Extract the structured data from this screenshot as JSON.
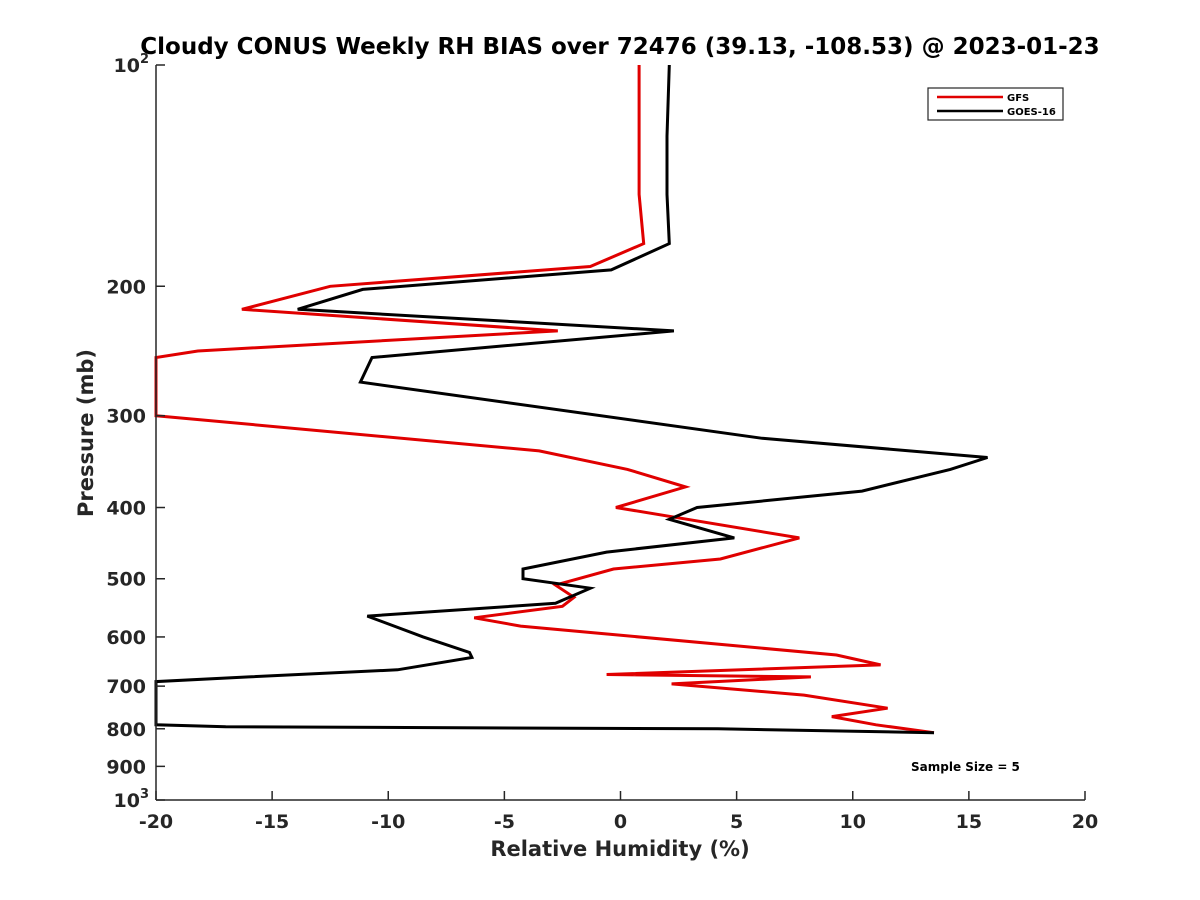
{
  "chart_data": {
    "type": "line",
    "title": "Cloudy CONUS Weekly RH BIAS over 72476 (39.13, -108.53) @ 2023-01-23",
    "xlabel": "Relative Humidity (%)",
    "ylabel": "Pressure (mb)",
    "xlim": [
      -20,
      20
    ],
    "ylim": [
      100,
      1000
    ],
    "y_scale": "log",
    "y_reversed": true,
    "x_ticks": [
      "-20",
      "-15",
      "-10",
      "-5",
      "0",
      "5",
      "10",
      "15",
      "20"
    ],
    "y_ticks": [
      {
        "value": 100,
        "base": "10",
        "exp": "2"
      },
      {
        "value": 200,
        "label": "200"
      },
      {
        "value": 300,
        "label": "300"
      },
      {
        "value": 400,
        "label": "400"
      },
      {
        "value": 500,
        "label": "500"
      },
      {
        "value": 600,
        "label": "600"
      },
      {
        "value": 700,
        "label": "700"
      },
      {
        "value": 800,
        "label": "800"
      },
      {
        "value": 900,
        "label": "900"
      },
      {
        "value": 1000,
        "base": "10",
        "exp": "3"
      }
    ],
    "grid": false,
    "legend_position": "top-right",
    "annotation": "Sample Size = 5",
    "series": [
      {
        "name": "GFS",
        "color": "#e00000",
        "points": [
          [
            0.8,
            100
          ],
          [
            0.8,
            125
          ],
          [
            0.8,
            150
          ],
          [
            1.0,
            175
          ],
          [
            -1.3,
            188
          ],
          [
            -12.5,
            200
          ],
          [
            -16.3,
            215
          ],
          [
            -2.7,
            230
          ],
          [
            -18.2,
            245
          ],
          [
            -20.0,
            250
          ],
          [
            -20.0,
            300
          ],
          [
            -3.5,
            335
          ],
          [
            0.3,
            355
          ],
          [
            2.8,
            375
          ],
          [
            -0.2,
            400
          ],
          [
            7.7,
            440
          ],
          [
            4.3,
            470
          ],
          [
            -0.3,
            485
          ],
          [
            -2.8,
            510
          ],
          [
            -2.0,
            530
          ],
          [
            -2.5,
            545
          ],
          [
            -6.3,
            565
          ],
          [
            -4.3,
            580
          ],
          [
            9.3,
            635
          ],
          [
            11.2,
            655
          ],
          [
            -0.6,
            675
          ],
          [
            8.2,
            680
          ],
          [
            2.2,
            695
          ],
          [
            7.9,
            720
          ],
          [
            11.5,
            750
          ],
          [
            9.1,
            770
          ],
          [
            11.0,
            790
          ],
          [
            13.5,
            810
          ]
        ]
      },
      {
        "name": "GOES-16",
        "color": "#000000",
        "points": [
          [
            2.1,
            100
          ],
          [
            2.0,
            125
          ],
          [
            2.0,
            150
          ],
          [
            2.1,
            175
          ],
          [
            -0.4,
            190
          ],
          [
            -11.1,
            202
          ],
          [
            -13.9,
            215
          ],
          [
            2.3,
            230
          ],
          [
            -10.7,
            250
          ],
          [
            -11.2,
            270
          ],
          [
            6.1,
            322
          ],
          [
            15.8,
            342
          ],
          [
            14.2,
            355
          ],
          [
            10.4,
            380
          ],
          [
            3.3,
            400
          ],
          [
            2.1,
            415
          ],
          [
            4.9,
            440
          ],
          [
            -0.6,
            460
          ],
          [
            -4.2,
            485
          ],
          [
            -4.2,
            500
          ],
          [
            -1.3,
            515
          ],
          [
            -2.8,
            540
          ],
          [
            -10.9,
            562
          ],
          [
            -8.5,
            600
          ],
          [
            -6.5,
            630
          ],
          [
            -6.4,
            640
          ],
          [
            -9.6,
            665
          ],
          [
            -16.0,
            680
          ],
          [
            -20.0,
            690
          ],
          [
            -20.0,
            790
          ],
          [
            -17.0,
            795
          ],
          [
            4.2,
            800
          ],
          [
            13.5,
            810
          ]
        ]
      }
    ]
  }
}
